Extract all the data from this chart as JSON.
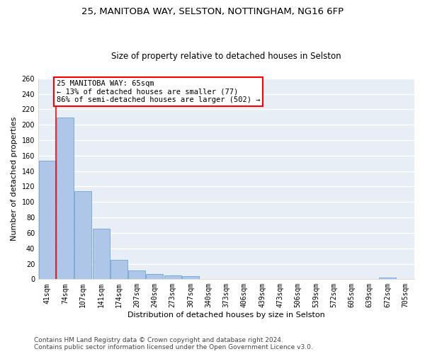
{
  "title_line1": "25, MANITOBA WAY, SELSTON, NOTTINGHAM, NG16 6FP",
  "title_line2": "Size of property relative to detached houses in Selston",
  "xlabel": "Distribution of detached houses by size in Selston",
  "ylabel": "Number of detached properties",
  "categories": [
    "41sqm",
    "74sqm",
    "107sqm",
    "141sqm",
    "174sqm",
    "207sqm",
    "240sqm",
    "273sqm",
    "307sqm",
    "340sqm",
    "373sqm",
    "406sqm",
    "439sqm",
    "473sqm",
    "506sqm",
    "539sqm",
    "572sqm",
    "605sqm",
    "639sqm",
    "672sqm",
    "705sqm"
  ],
  "values": [
    153,
    209,
    114,
    65,
    25,
    11,
    7,
    5,
    4,
    0,
    0,
    0,
    0,
    0,
    0,
    0,
    0,
    0,
    0,
    2,
    0
  ],
  "bar_color": "#aec6e8",
  "bar_edge_color": "#5b9bd5",
  "vline_color": "red",
  "vline_x": 0.5,
  "annotation_text": "25 MANITOBA WAY: 65sqm\n← 13% of detached houses are smaller (77)\n86% of semi-detached houses are larger (502) →",
  "annotation_box_facecolor": "white",
  "annotation_box_edgecolor": "red",
  "ylim": [
    0,
    260
  ],
  "yticks": [
    0,
    20,
    40,
    60,
    80,
    100,
    120,
    140,
    160,
    180,
    200,
    220,
    240,
    260
  ],
  "footnote": "Contains HM Land Registry data © Crown copyright and database right 2024.\nContains public sector information licensed under the Open Government Licence v3.0.",
  "bg_color": "#e8eef5",
  "grid_color": "white",
  "title1_fontsize": 9.5,
  "title2_fontsize": 8.5,
  "xlabel_fontsize": 8,
  "ylabel_fontsize": 8,
  "tick_fontsize": 7,
  "annotation_fontsize": 7.5,
  "footnote_fontsize": 6.5
}
